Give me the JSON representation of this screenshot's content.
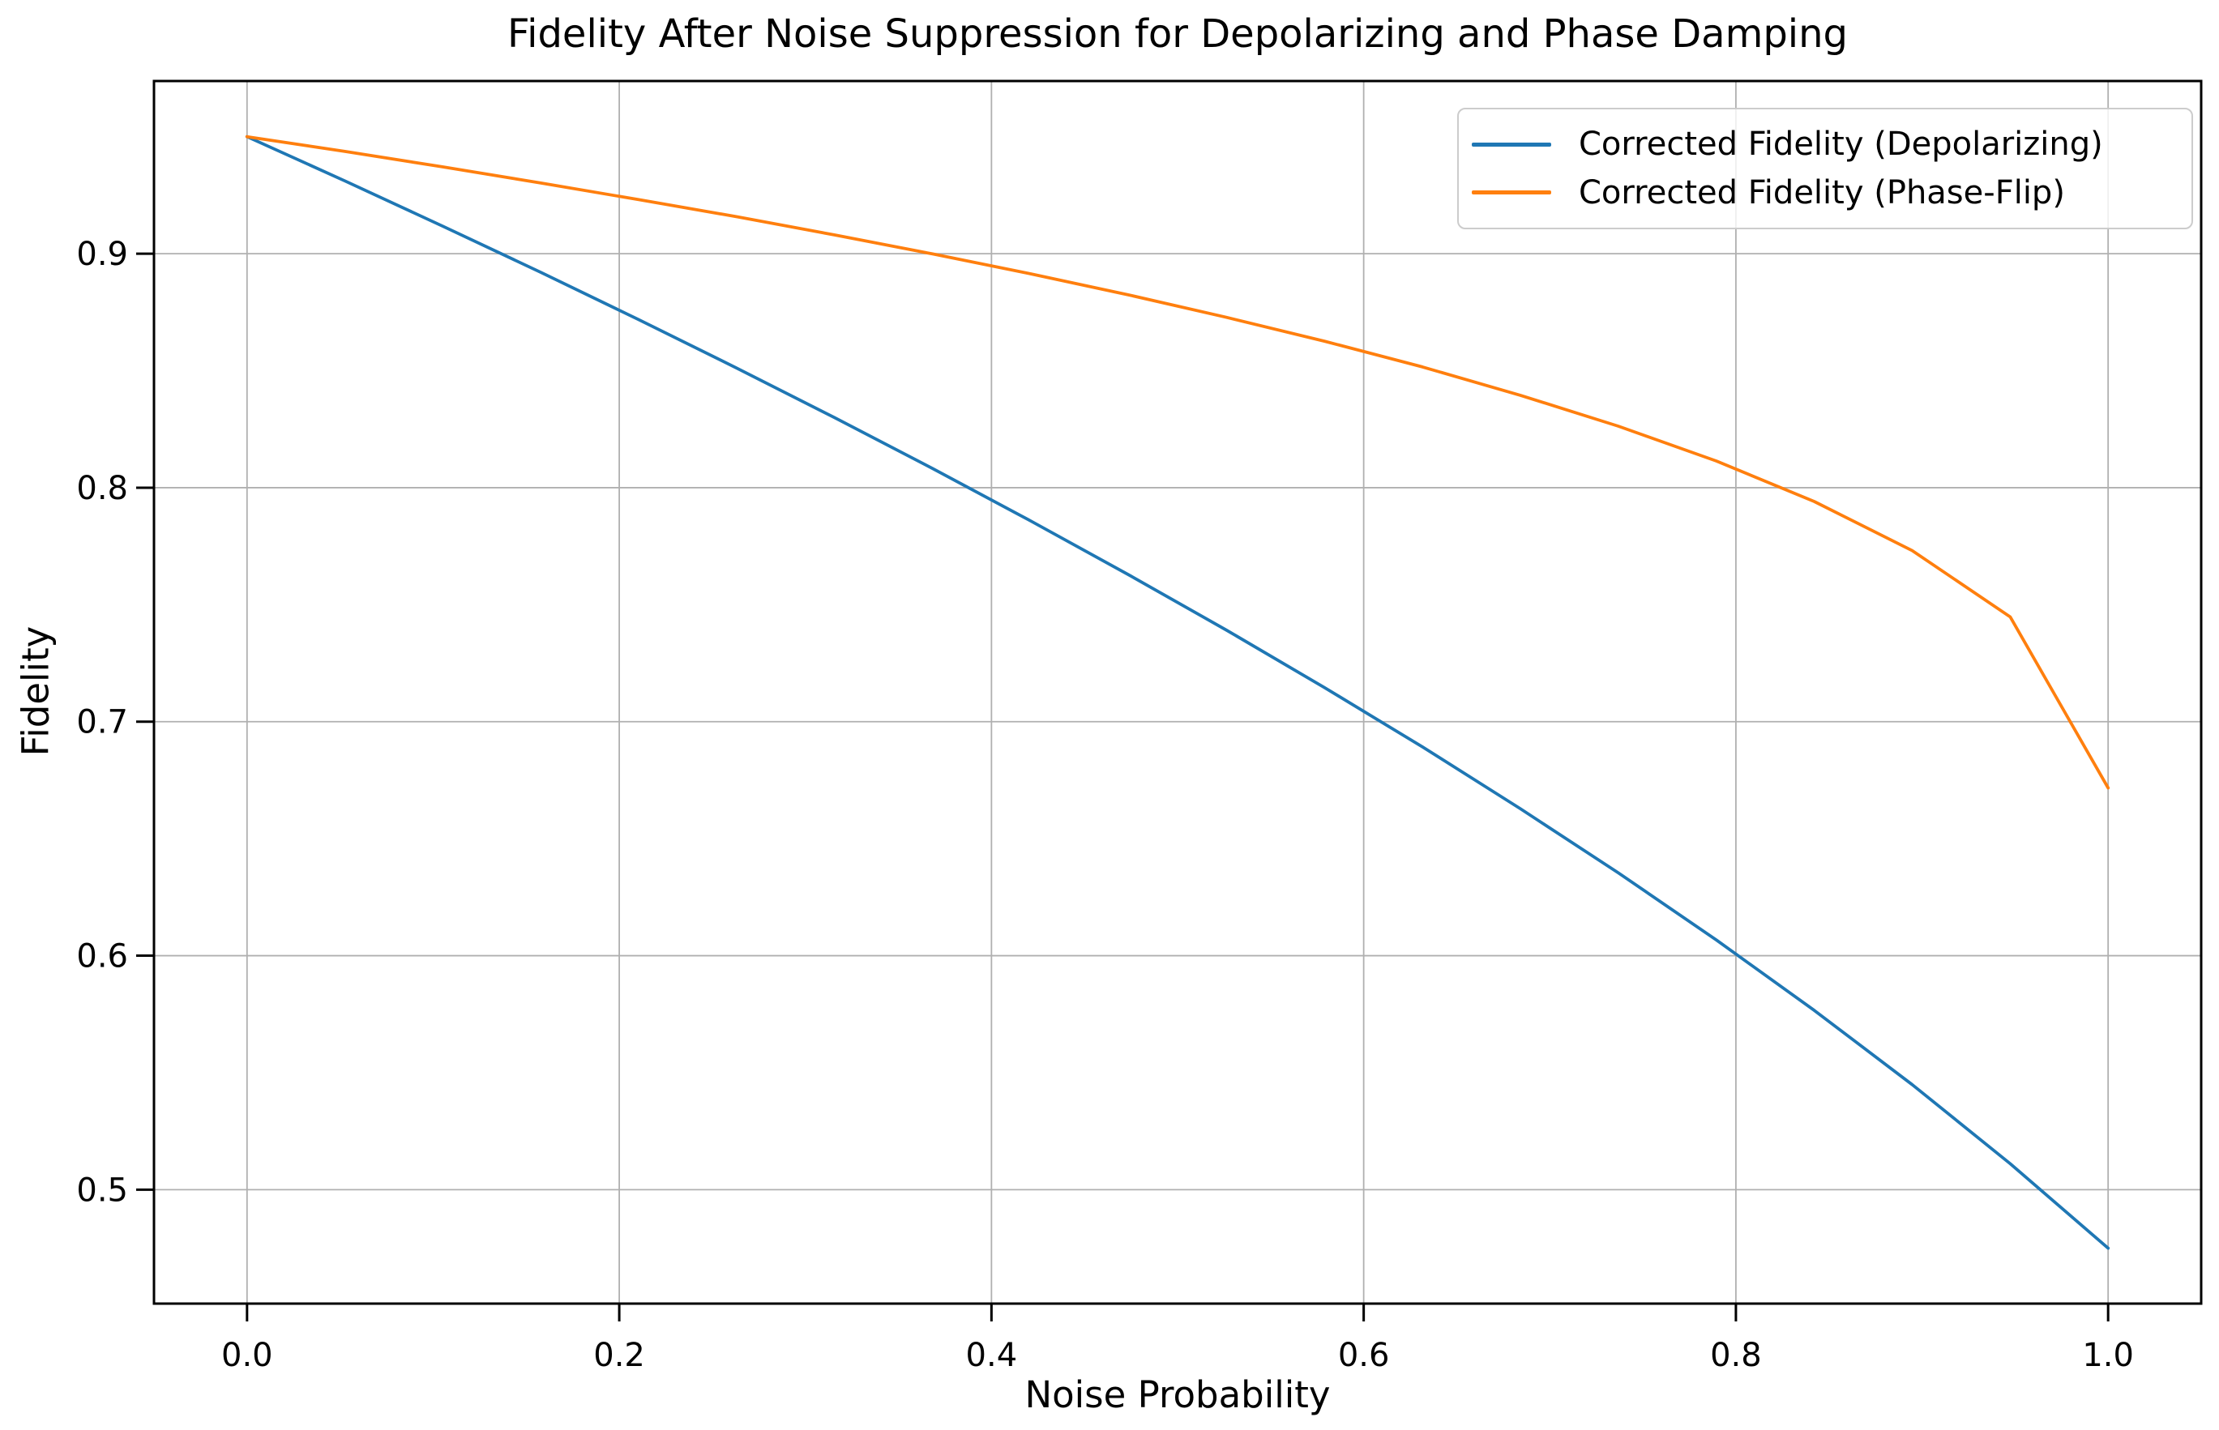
{
  "figure": {
    "title": "Fidelity After Noise Suppression for Depolarizing and Phase Damping",
    "background_color": "#ffffff"
  },
  "axes": {
    "xlabel": "Noise Probability",
    "ylabel": "Fidelity",
    "x_tick_labels": [
      "0.0",
      "0.2",
      "0.4",
      "0.6",
      "0.8",
      "1.0"
    ],
    "y_tick_labels": [
      "0.5",
      "0.6",
      "0.7",
      "0.8",
      "0.9"
    ],
    "grid_color": "#b0b0b0",
    "spine_color": "#000000",
    "tick_color": "#000000",
    "text_color": "#000000"
  },
  "legend": {
    "position": "upper-right",
    "border_color": "#cccccc",
    "background": "rgba(255,255,255,0.8)",
    "entries": [
      {
        "label": "Corrected Fidelity (Depolarizing)",
        "color": "#1f77b4"
      },
      {
        "label": "Corrected Fidelity (Phase-Flip)",
        "color": "#ff7f0e"
      }
    ]
  },
  "chart_data": {
    "type": "line",
    "title": "Fidelity After Noise Suppression for Depolarizing and Phase Damping",
    "xlabel": "Noise Probability",
    "ylabel": "Fidelity",
    "xlim": [
      -0.05,
      1.05
    ],
    "ylim": [
      0.4513,
      0.9738
    ],
    "x_ticks": [
      0.0,
      0.2,
      0.4,
      0.6,
      0.8,
      1.0
    ],
    "y_ticks": [
      0.5,
      0.6,
      0.7,
      0.8,
      0.9
    ],
    "grid": true,
    "legend_position": "upper right",
    "x": [
      0.0,
      0.0526,
      0.1053,
      0.1579,
      0.2105,
      0.2632,
      0.3158,
      0.3684,
      0.4211,
      0.4737,
      0.5263,
      0.5789,
      0.6316,
      0.6842,
      0.7368,
      0.7895,
      0.8421,
      0.8947,
      0.9474,
      1.0
    ],
    "series": [
      {
        "name": "Corrected Fidelity (Depolarizing)",
        "color": "#1f77b4",
        "values": [
          0.95,
          0.9311,
          0.9117,
          0.892,
          0.8718,
          0.8511,
          0.8299,
          0.8082,
          0.7858,
          0.7628,
          0.7391,
          0.7146,
          0.6892,
          0.6628,
          0.6354,
          0.6067,
          0.5766,
          0.5449,
          0.5111,
          0.475
        ]
      },
      {
        "name": "Corrected Fidelity (Phase-Flip)",
        "color": "#ff7f0e",
        "values": [
          0.95,
          0.9437,
          0.9371,
          0.9302,
          0.9231,
          0.9158,
          0.908,
          0.8999,
          0.8914,
          0.8824,
          0.8728,
          0.8626,
          0.8516,
          0.8395,
          0.8263,
          0.8114,
          0.7941,
          0.7731,
          0.7448,
          0.6717
        ]
      }
    ]
  }
}
